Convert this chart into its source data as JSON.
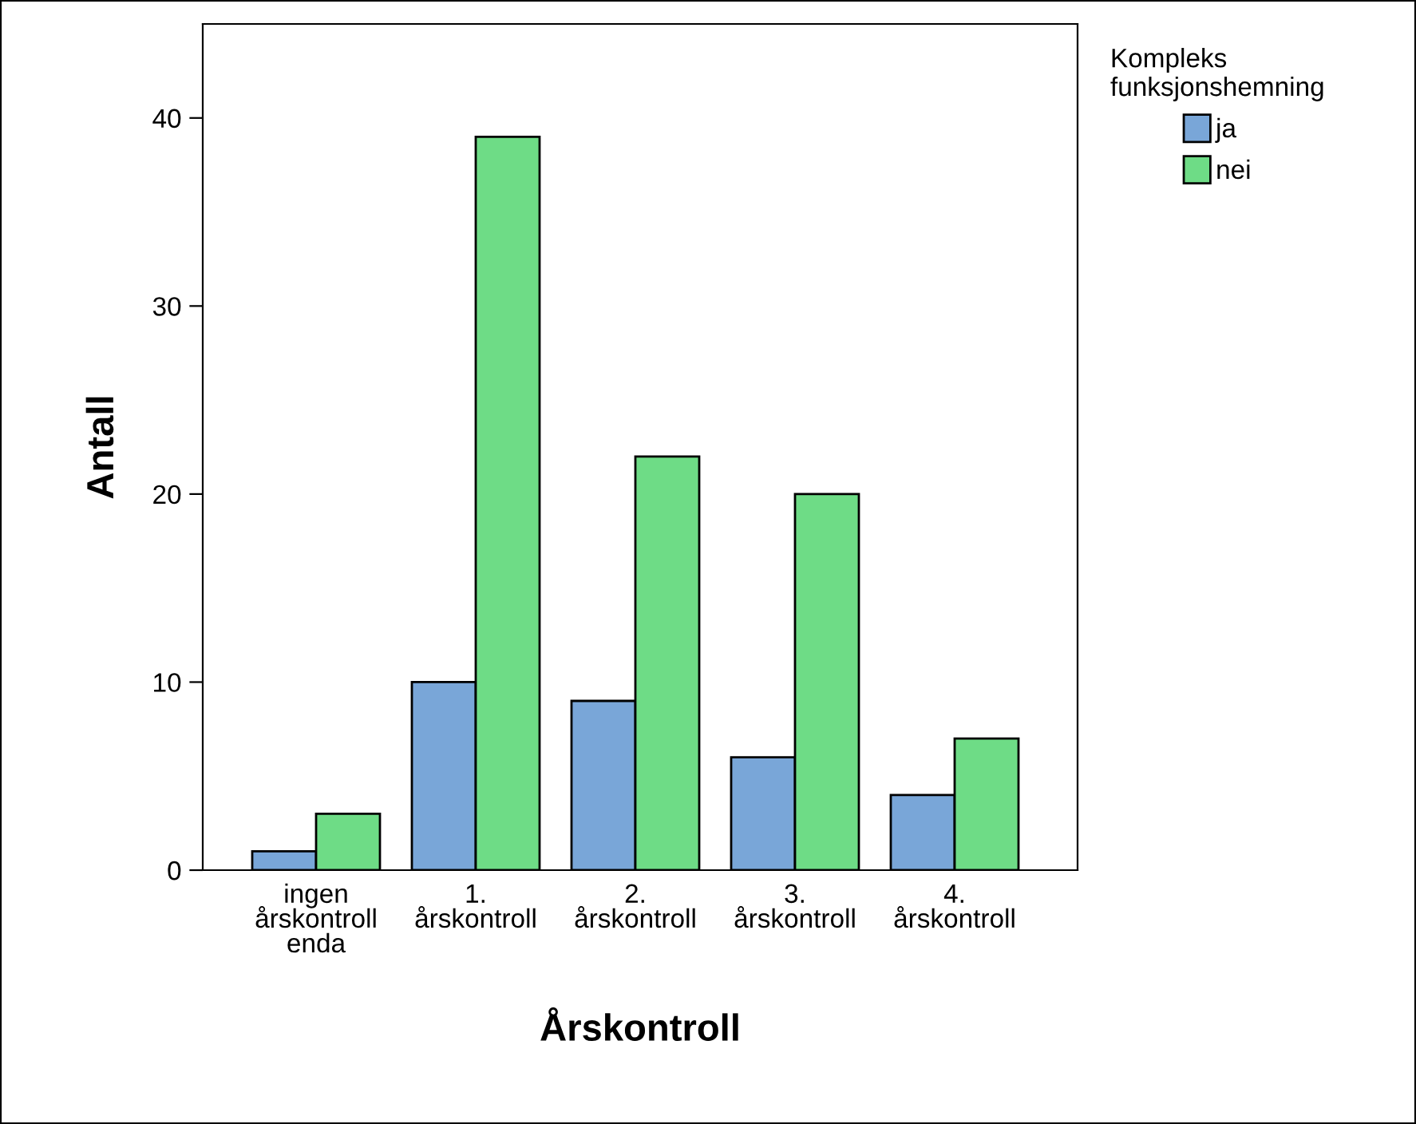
{
  "chart_data": {
    "type": "bar",
    "xlabel": "Årskontroll",
    "ylabel": "Antall",
    "legend_title": "Kompleks\nfunksjonshemning",
    "categories": [
      "ingen\nårskontroll\nenda",
      "1.\nårskontroll",
      "2.\nårskontroll",
      "3.\nårskontroll",
      "4.\nårskontroll"
    ],
    "series": [
      {
        "name": "ja",
        "color": "#79a6d8",
        "values": [
          1,
          10,
          9,
          6,
          4
        ]
      },
      {
        "name": "nei",
        "color": "#6edc86",
        "values": [
          3,
          39,
          22,
          20,
          7
        ]
      }
    ],
    "ylim": [
      0,
      45
    ],
    "yticks": [
      0,
      10,
      20,
      30,
      40
    ],
    "grid": false,
    "legend": "top right"
  }
}
